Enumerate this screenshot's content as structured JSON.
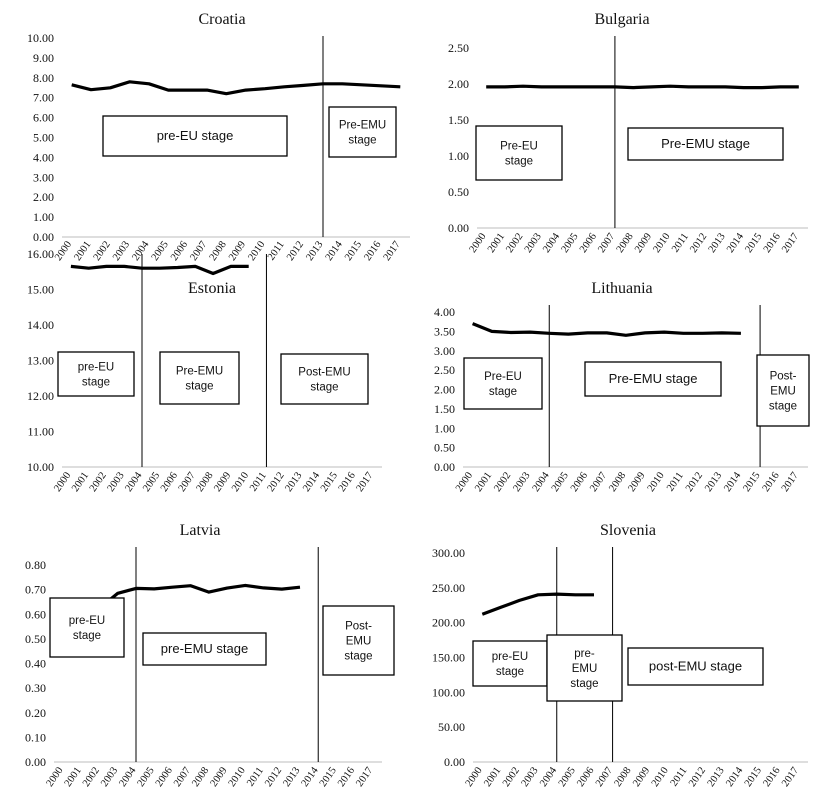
{
  "years": [
    "2000",
    "2001",
    "2002",
    "2003",
    "2004",
    "2005",
    "2006",
    "2007",
    "2008",
    "2009",
    "2010",
    "2011",
    "2012",
    "2013",
    "2014",
    "2015",
    "2016",
    "2017"
  ],
  "chart_data": [
    {
      "type": "line",
      "title": "Croatia",
      "categories": [
        "2000",
        "2001",
        "2002",
        "2003",
        "2004",
        "2005",
        "2006",
        "2007",
        "2008",
        "2009",
        "2010",
        "2011",
        "2012",
        "2013",
        "2014",
        "2015",
        "2016",
        "2017"
      ],
      "series": [
        {
          "values": [
            7.65,
            7.4,
            7.5,
            7.8,
            7.7,
            7.38,
            7.38,
            7.38,
            7.2,
            7.38,
            7.45,
            7.55,
            7.62,
            7.7,
            7.7,
            7.65,
            7.6,
            7.55
          ]
        }
      ],
      "ylim": [
        0,
        10
      ],
      "yticks": [
        "0.00",
        "1.00",
        "2.00",
        "3.00",
        "4.00",
        "5.00",
        "6.00",
        "7.00",
        "8.00",
        "9.00",
        "10.00"
      ],
      "dividers": [
        "2013"
      ],
      "stages": [
        {
          "lines": [
            "pre-EU stage"
          ]
        },
        {
          "lines": [
            "Pre-EMU",
            "stage"
          ]
        }
      ]
    },
    {
      "type": "line",
      "title": "Bulgaria",
      "categories": [
        "2000",
        "2001",
        "2002",
        "2003",
        "2004",
        "2005",
        "2006",
        "2007",
        "2008",
        "2009",
        "2010",
        "2011",
        "2012",
        "2013",
        "2014",
        "2015",
        "2016",
        "2017"
      ],
      "series": [
        {
          "values": [
            1.96,
            1.96,
            1.97,
            1.96,
            1.96,
            1.96,
            1.96,
            1.96,
            1.95,
            1.96,
            1.97,
            1.96,
            1.96,
            1.96,
            1.95,
            1.95,
            1.96,
            1.96
          ]
        }
      ],
      "ylim": [
        0,
        2.5
      ],
      "yticks": [
        "0.00",
        "0.50",
        "1.00",
        "1.50",
        "2.00",
        "2.50"
      ],
      "dividers": [
        "2007"
      ],
      "stages": [
        {
          "lines": [
            "Pre-EU",
            "stage"
          ]
        },
        {
          "lines": [
            "Pre-EMU stage"
          ]
        }
      ]
    },
    {
      "type": "line",
      "title": "Estonia",
      "categories": [
        "2000",
        "2001",
        "2002",
        "2003",
        "2004",
        "2005",
        "2006",
        "2007",
        "2008",
        "2009",
        "2010",
        "2011",
        "2012",
        "2013",
        "2014",
        "2015",
        "2016",
        "2017"
      ],
      "series": [
        {
          "values": [
            15.65,
            15.6,
            15.65,
            15.65,
            15.6,
            15.6,
            15.62,
            15.65,
            15.45,
            15.65,
            15.65,
            null,
            null,
            null,
            null,
            null,
            null,
            null
          ]
        }
      ],
      "ylim": [
        10,
        16
      ],
      "yticks": [
        "10.00",
        "11.00",
        "12.00",
        "13.00",
        "14.00",
        "15.00",
        "16.00"
      ],
      "dividers": [
        "2004",
        "2011"
      ],
      "stages": [
        {
          "lines": [
            "pre-EU",
            "stage"
          ]
        },
        {
          "lines": [
            "Pre-EMU",
            "stage"
          ]
        },
        {
          "lines": [
            "Post-EMU",
            "stage"
          ]
        }
      ]
    },
    {
      "type": "line",
      "title": "Lithuania",
      "categories": [
        "2000",
        "2001",
        "2002",
        "2003",
        "2004",
        "2005",
        "2006",
        "2007",
        "2008",
        "2009",
        "2010",
        "2011",
        "2012",
        "2013",
        "2014",
        "2015",
        "2016",
        "2017"
      ],
      "series": [
        {
          "values": [
            3.7,
            3.5,
            3.47,
            3.48,
            3.45,
            3.43,
            3.46,
            3.46,
            3.4,
            3.46,
            3.48,
            3.45,
            3.45,
            3.46,
            3.45,
            null,
            null,
            null
          ]
        }
      ],
      "ylim": [
        0,
        4
      ],
      "yticks": [
        "0.00",
        "0.50",
        "1.00",
        "1.50",
        "2.00",
        "2.50",
        "3.00",
        "3.50",
        "4.00"
      ],
      "dividers": [
        "2004",
        "2015"
      ],
      "stages": [
        {
          "lines": [
            "Pre-EU",
            "stage"
          ]
        },
        {
          "lines": [
            "Pre-EMU stage"
          ]
        },
        {
          "lines": [
            "Post-",
            "EMU",
            "stage"
          ]
        }
      ]
    },
    {
      "type": "line",
      "title": "Latvia",
      "categories": [
        "2000",
        "2001",
        "2002",
        "2003",
        "2004",
        "2005",
        "2006",
        "2007",
        "2008",
        "2009",
        "2010",
        "2011",
        "2012",
        "2013",
        "2014",
        "2015",
        "2016",
        "2017"
      ],
      "series": [
        {
          "values": [
            0.575,
            0.565,
            0.625,
            0.685,
            0.705,
            0.703,
            0.71,
            0.716,
            0.69,
            0.706,
            0.717,
            0.707,
            0.702,
            0.71,
            null,
            null,
            null,
            null
          ]
        }
      ],
      "ylim": [
        0,
        0.8
      ],
      "yticks": [
        "0.00",
        "0.10",
        "0.20",
        "0.30",
        "0.40",
        "0.50",
        "0.60",
        "0.70",
        "0.80"
      ],
      "dividers": [
        "2004",
        "2014"
      ],
      "stages": [
        {
          "lines": [
            "pre-EU",
            "stage"
          ]
        },
        {
          "lines": [
            "pre-EMU stage"
          ]
        },
        {
          "lines": [
            "Post-",
            "EMU",
            "stage"
          ]
        }
      ]
    },
    {
      "type": "line",
      "title": "Slovenia",
      "categories": [
        "2000",
        "2001",
        "2002",
        "2003",
        "2004",
        "2005",
        "2006",
        "2007",
        "2008",
        "2009",
        "2010",
        "2011",
        "2012",
        "2013",
        "2014",
        "2015",
        "2016",
        "2017"
      ],
      "series": [
        {
          "values": [
            212,
            222,
            232,
            240,
            241,
            240,
            240,
            null,
            null,
            null,
            null,
            null,
            null,
            null,
            null,
            null,
            null,
            null
          ]
        }
      ],
      "ylim": [
        0,
        300
      ],
      "yticks": [
        "0.00",
        "50.00",
        "100.00",
        "150.00",
        "200.00",
        "250.00",
        "300.00"
      ],
      "dividers": [
        "2004",
        "2007"
      ],
      "stages": [
        {
          "lines": [
            "pre-EU",
            "stage"
          ]
        },
        {
          "lines": [
            "pre-",
            "EMU",
            "stage"
          ]
        },
        {
          "lines": [
            "post-EMU stage"
          ]
        }
      ]
    }
  ]
}
